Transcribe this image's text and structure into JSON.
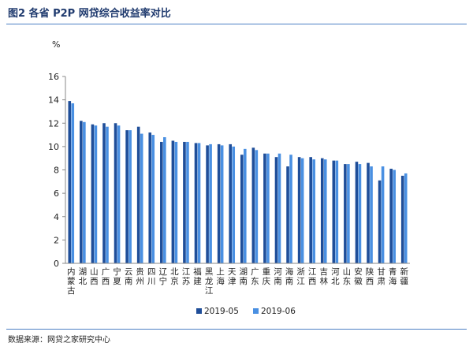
{
  "figure": {
    "title": "图2   各省 P2P 网贷综合收益率对比",
    "source": "数据来源：网贷之家研究中心"
  },
  "chart_data": {
    "type": "bar",
    "title": "",
    "ylabel": "%",
    "xlabel": "",
    "ylim": [
      0,
      16
    ],
    "yticks": [
      0,
      2,
      4,
      6,
      8,
      10,
      12,
      14,
      16
    ],
    "grid": false,
    "legend": "bottom",
    "categories": [
      "内蒙古",
      "湖北",
      "山西",
      "广西",
      "宁夏",
      "云南",
      "贵州",
      "四川",
      "辽宁",
      "北京",
      "江苏",
      "福建",
      "黑龙江",
      "上海",
      "天津",
      "湖南",
      "广东",
      "重庆",
      "河南",
      "海南",
      "浙江",
      "江西",
      "吉林",
      "河北",
      "山东",
      "安徽",
      "陕西",
      "甘肃",
      "青海",
      "新疆"
    ],
    "series": [
      {
        "name": "2019-05",
        "color": "#1f4e99",
        "values": [
          13.9,
          12.2,
          11.9,
          12.0,
          12.0,
          11.4,
          11.7,
          11.2,
          10.4,
          10.5,
          10.4,
          10.3,
          10.1,
          10.2,
          10.2,
          9.3,
          9.9,
          9.4,
          9.1,
          8.3,
          9.1,
          9.1,
          9.0,
          8.8,
          8.5,
          8.7,
          8.6,
          7.1,
          8.1,
          7.5
        ]
      },
      {
        "name": "2019-06",
        "color": "#4a90e2",
        "values": [
          13.7,
          12.1,
          11.8,
          11.7,
          11.8,
          11.4,
          11.1,
          11.0,
          10.8,
          10.4,
          10.4,
          10.3,
          10.2,
          10.1,
          10.0,
          9.8,
          9.7,
          9.4,
          9.4,
          9.3,
          9.0,
          8.9,
          8.9,
          8.8,
          8.5,
          8.5,
          8.3,
          8.3,
          8.0,
          7.7
        ]
      }
    ]
  }
}
